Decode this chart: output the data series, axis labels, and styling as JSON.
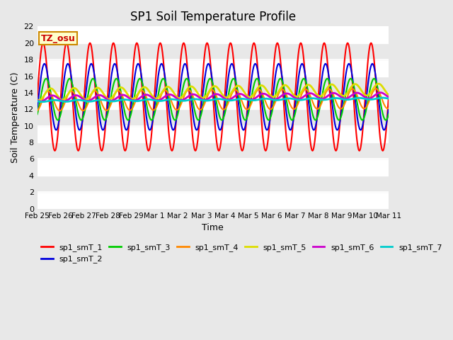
{
  "title": "SP1 Soil Temperature Profile",
  "xlabel": "Time",
  "ylabel": "Soil Temperature (C)",
  "ylim": [
    0,
    22
  ],
  "xlim": [
    0,
    15
  ],
  "annotation_text": "TZ_osu",
  "annotation_color": "#cc0000",
  "annotation_bg": "#ffffcc",
  "annotation_border": "#cc8800",
  "fig_facecolor": "#e8e8e8",
  "plot_facecolor": "#e8e8e8",
  "band_colors": [
    "#ffffff",
    "#e8e8e8"
  ],
  "series": [
    {
      "label": "sp1_smT_1",
      "color": "#ff0000",
      "amplitude": 6.5,
      "mean": 13.5,
      "phase": 0.0,
      "trend": 0.0,
      "lw": 1.5
    },
    {
      "label": "sp1_smT_2",
      "color": "#0000dd",
      "amplitude": 4.0,
      "mean": 13.5,
      "phase": 0.35,
      "trend": 0.0,
      "lw": 1.5
    },
    {
      "label": "sp1_smT_3",
      "color": "#00cc00",
      "amplitude": 2.5,
      "mean": 13.2,
      "phase": 0.8,
      "trend": 0.0,
      "lw": 1.5
    },
    {
      "label": "sp1_smT_4",
      "color": "#ff8800",
      "amplitude": 1.2,
      "mean": 13.0,
      "phase": 1.3,
      "trend": 0.02,
      "lw": 1.5
    },
    {
      "label": "sp1_smT_5",
      "color": "#dddd00",
      "amplitude": 0.7,
      "mean": 13.8,
      "phase": 2.0,
      "trend": 0.04,
      "lw": 2.0
    },
    {
      "label": "sp1_smT_6",
      "color": "#cc00cc",
      "amplitude": 0.35,
      "mean": 13.3,
      "phase": 2.5,
      "trend": 0.025,
      "lw": 2.0
    },
    {
      "label": "sp1_smT_7",
      "color": "#00cccc",
      "amplitude": 0.1,
      "mean": 13.0,
      "phase": 3.0,
      "trend": 0.02,
      "lw": 2.0
    }
  ],
  "n_points": 1000,
  "total_days": 15.0,
  "period": 1.0,
  "xtick_labels": [
    "Feb 25",
    "Feb 26",
    "Feb 27",
    "Feb 28",
    "Feb 29",
    "Mar 1",
    "Mar 2",
    "Mar 3",
    "Mar 4",
    "Mar 5",
    "Mar 6",
    "Mar 7",
    "Mar 8",
    "Mar 9",
    "Mar 10",
    "Mar 11"
  ],
  "ytick_step": 2,
  "title_fontsize": 12,
  "label_fontsize": 9,
  "tick_fontsize": 8,
  "legend_fontsize": 8
}
